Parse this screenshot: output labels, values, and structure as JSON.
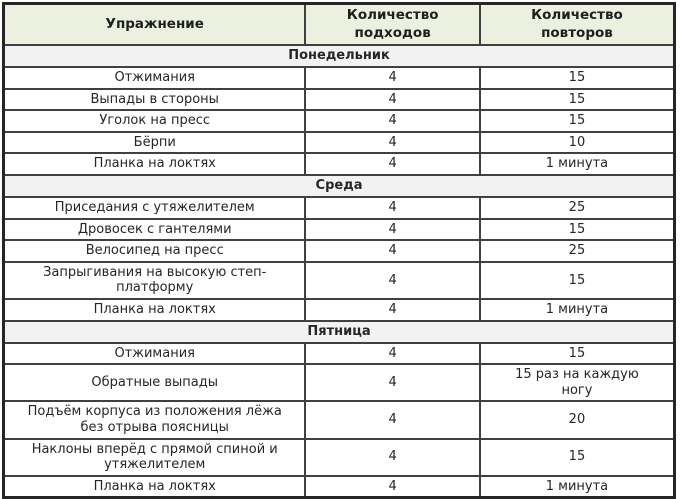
{
  "table": {
    "headers": [
      "Упражнение",
      "Количество\nподходов",
      "Количество\nповторов"
    ],
    "sections": [
      {
        "day": "Понедельник",
        "rows": [
          {
            "exercise": "Отжимания",
            "sets": "4",
            "reps": "15"
          },
          {
            "exercise": "Выпады в стороны",
            "sets": "4",
            "reps": "15"
          },
          {
            "exercise": "Уголок на пресс",
            "sets": "4",
            "reps": "15"
          },
          {
            "exercise": "Бёрпи",
            "sets": "4",
            "reps": "10"
          },
          {
            "exercise": "Планка на локтях",
            "sets": "4",
            "reps": "1 минута"
          }
        ]
      },
      {
        "day": "Среда",
        "rows": [
          {
            "exercise": "Приседания с утяжелителем",
            "sets": "4",
            "reps": "25"
          },
          {
            "exercise": "Дровосек с гантелями",
            "sets": "4",
            "reps": "15"
          },
          {
            "exercise": "Велосипед на пресс",
            "sets": "4",
            "reps": "25"
          },
          {
            "exercise": "Запрыгивания на высокую степ-\nплатформу",
            "sets": "4",
            "reps": "15"
          },
          {
            "exercise": "Планка на локтях",
            "sets": "4",
            "reps": "1 минута"
          }
        ]
      },
      {
        "day": "Пятница",
        "rows": [
          {
            "exercise": "Отжимания",
            "sets": "4",
            "reps": "15"
          },
          {
            "exercise": "Обратные выпады",
            "sets": "4",
            "reps": "15 раз на каждую\nногу"
          },
          {
            "exercise": "Подъём корпуса из положения лёжа\nбез отрыва поясницы",
            "sets": "4",
            "reps": "20"
          },
          {
            "exercise": "Наклоны вперёд с прямой спиной и\nутяжелителем",
            "sets": "4",
            "reps": "15"
          },
          {
            "exercise": "Планка на локтях",
            "sets": "4",
            "reps": "1 минута"
          }
        ]
      }
    ]
  },
  "colors": {
    "header_bg": "#ebf1de",
    "day_row_bg": "#f2f2f2",
    "cell_border": "#404040",
    "outer_border": "#262626",
    "text": "#262626"
  }
}
